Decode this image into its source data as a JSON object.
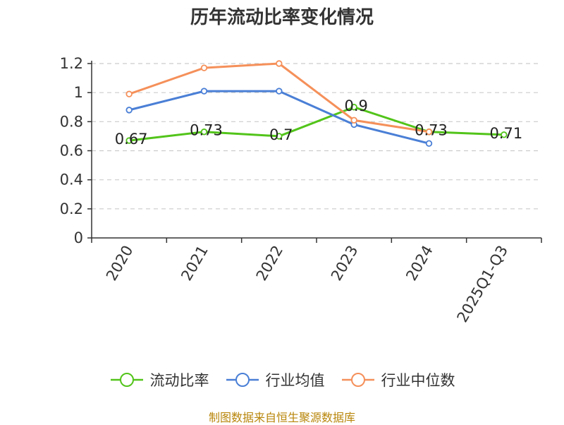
{
  "chart_data": {
    "type": "line",
    "title": "历年流动比率变化情况",
    "categories": [
      "2020",
      "2021",
      "2022",
      "2023",
      "2024",
      "2025Q1-Q3"
    ],
    "ylim": [
      0,
      1.2
    ],
    "yticks": [
      "0",
      "0.2",
      "0.4",
      "0.6",
      "0.8",
      "1",
      "1.2"
    ],
    "series": [
      {
        "name": "流动比率",
        "color": "#52c41a",
        "values": [
          0.67,
          0.73,
          0.7,
          0.9,
          0.73,
          0.71
        ],
        "labels": [
          "0.67",
          "0.73",
          "0.7",
          "0.9",
          "0.73",
          "0.71"
        ]
      },
      {
        "name": "行业均值",
        "color": "#4a7fd6",
        "values": [
          0.88,
          1.01,
          1.01,
          0.78,
          0.65,
          null
        ]
      },
      {
        "name": "行业中位数",
        "color": "#f5905a",
        "values": [
          0.99,
          1.17,
          1.2,
          0.81,
          0.73,
          null
        ]
      }
    ]
  },
  "source_text": "制图数据来自恒生聚源数据库"
}
